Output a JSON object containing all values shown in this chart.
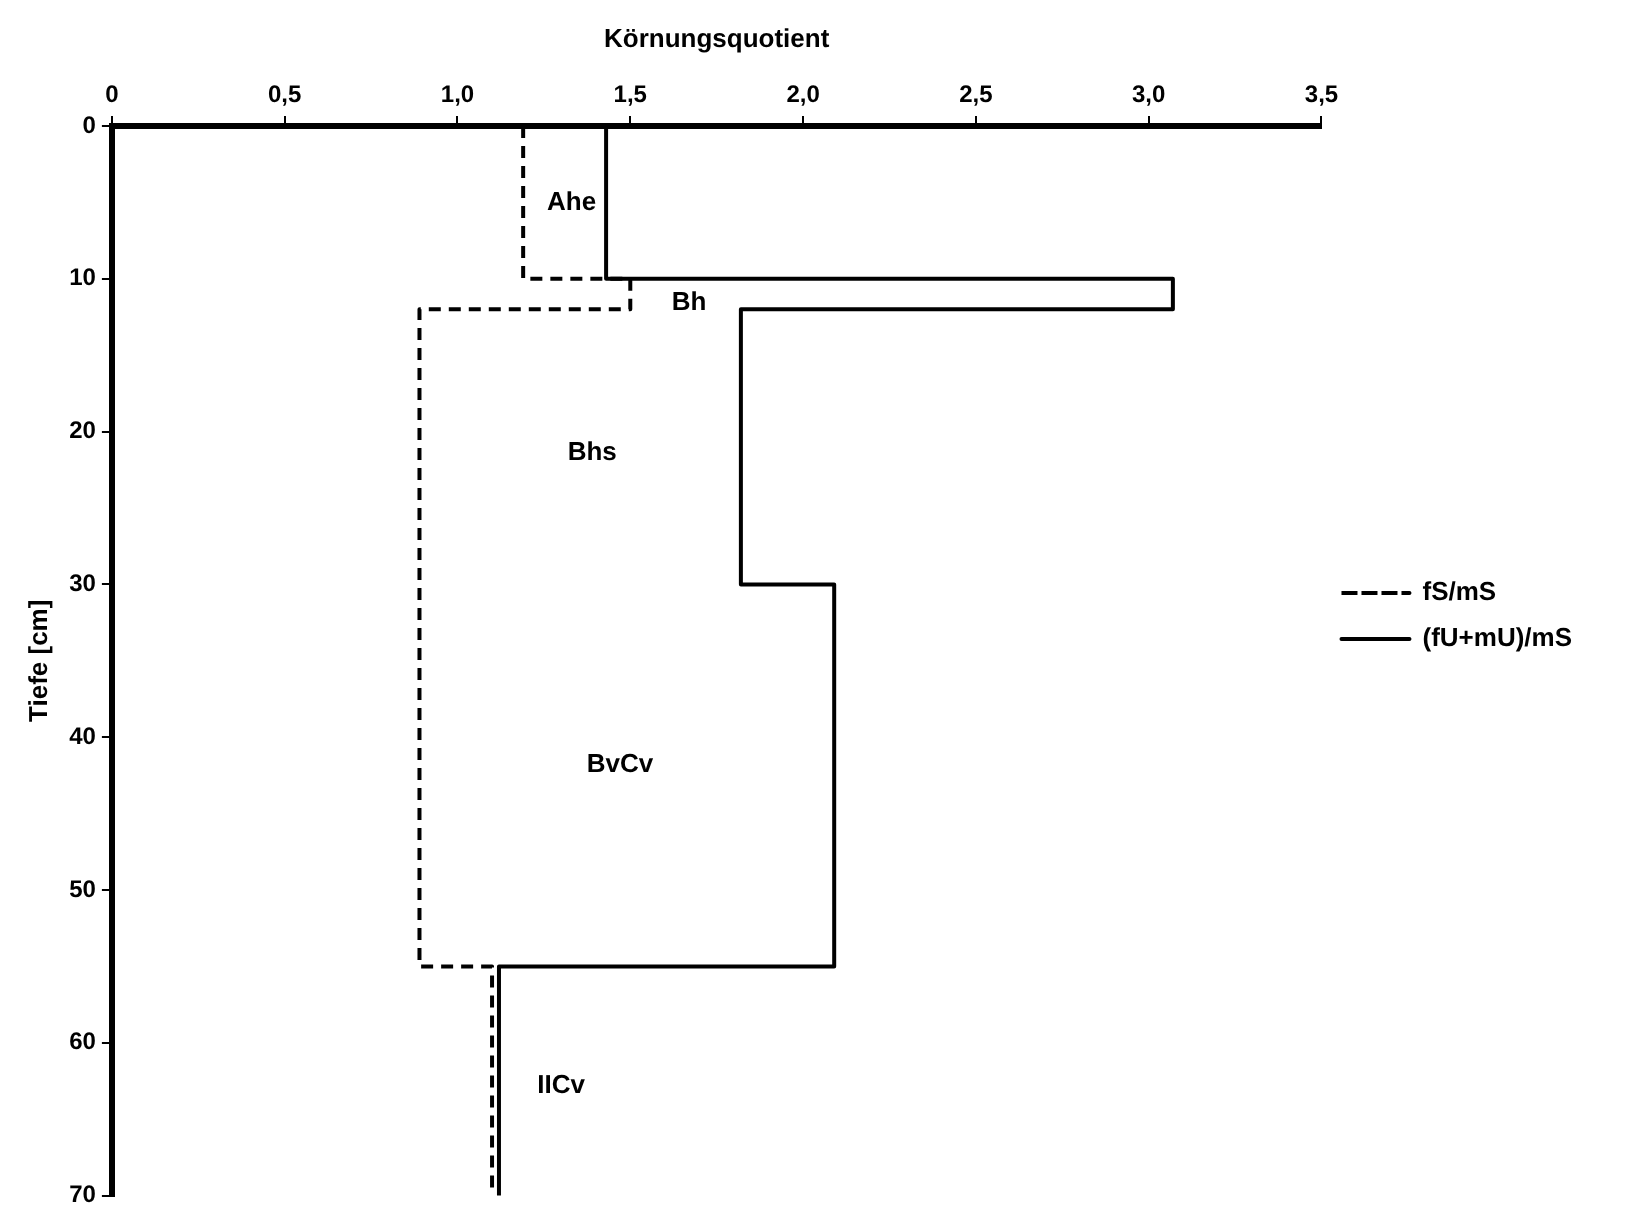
{
  "chart_data": {
    "type": "line",
    "xlabel": "Körnungsquotient",
    "ylabel": "Tiefe [cm]",
    "xlim": [
      0,
      3.5
    ],
    "xticks": [
      0,
      {
        "value": 0.5,
        "label": "0,5"
      },
      {
        "value": 1,
        "label": "1,0"
      },
      {
        "value": 1.5,
        "label": "1,5"
      },
      {
        "value": 2,
        "label": "2,0"
      },
      {
        "value": 2.5,
        "label": "2,5"
      },
      {
        "value": 3,
        "label": "3,0"
      },
      {
        "value": 3.5,
        "label": "3,5"
      }
    ],
    "ylim": [
      70,
      0
    ],
    "yticks": [
      0,
      10,
      20,
      30,
      40,
      50,
      60,
      70
    ],
    "grid": false,
    "legend": "right",
    "marker": "none",
    "series": [
      {
        "name": "fS/mS",
        "color": "#000000",
        "line_style": "dashed",
        "x": [
          1.19,
          1.19,
          1.5,
          1.5,
          0.89,
          0.89,
          1.1,
          1.1
        ],
        "values": [
          0,
          10,
          10,
          12,
          12,
          55,
          55,
          70
        ]
      },
      {
        "name": "(fU+mU)/mS",
        "color": "#000000",
        "line_style": "solid",
        "x": [
          1.43,
          1.43,
          3.07,
          3.07,
          1.82,
          1.82,
          2.09,
          2.09,
          1.12,
          1.12
        ],
        "values": [
          0,
          10,
          10,
          12,
          12,
          30,
          30,
          55,
          55,
          70
        ]
      }
    ],
    "annotations": [
      "Ahe",
      "Bh",
      "Bhs",
      "BvCv",
      "IICv"
    ]
  }
}
